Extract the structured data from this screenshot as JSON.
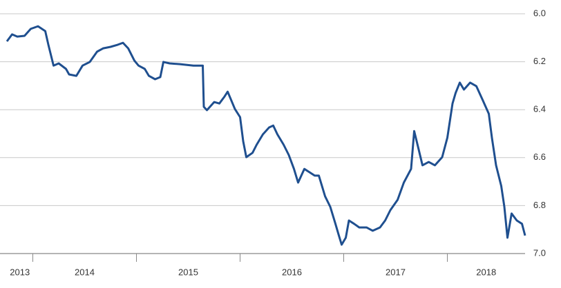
{
  "chart_data": {
    "type": "line",
    "x": [
      2013.75,
      2013.8,
      2013.85,
      2013.92,
      2013.98,
      2014.05,
      2014.12,
      2014.15,
      2014.2,
      2014.25,
      2014.32,
      2014.35,
      2014.42,
      2014.48,
      2014.55,
      2014.62,
      2014.68,
      2014.75,
      2014.82,
      2014.87,
      2014.92,
      2014.98,
      2015.02,
      2015.08,
      2015.12,
      2015.18,
      2015.23,
      2015.26,
      2015.32,
      2015.42,
      2015.55,
      2015.64,
      2015.65,
      2015.68,
      2015.75,
      2015.8,
      2015.85,
      2015.88,
      2015.95,
      2016.0,
      2016.03,
      2016.06,
      2016.12,
      2016.16,
      2016.22,
      2016.28,
      2016.32,
      2016.36,
      2016.42,
      2016.47,
      2016.52,
      2016.56,
      2016.62,
      2016.67,
      2016.72,
      2016.76,
      2016.82,
      2016.87,
      2016.92,
      2016.95,
      2016.98,
      2017.02,
      2017.05,
      2017.1,
      2017.15,
      2017.22,
      2017.28,
      2017.35,
      2017.4,
      2017.45,
      2017.52,
      2017.58,
      2017.65,
      2017.68,
      2017.72,
      2017.76,
      2017.82,
      2017.88,
      2017.95,
      2018.0,
      2018.05,
      2018.08,
      2018.12,
      2018.16,
      2018.22,
      2018.28,
      2018.34,
      2018.4,
      2018.43,
      2018.47,
      2018.52,
      2018.55,
      2018.58,
      2018.62,
      2018.67,
      2018.72,
      2018.75
    ],
    "series": [
      {
        "color": "#1f4f8f",
        "values": [
          6.115,
          6.086,
          6.095,
          6.092,
          6.063,
          6.052,
          6.072,
          6.129,
          6.216,
          6.207,
          6.23,
          6.253,
          6.259,
          6.216,
          6.201,
          6.158,
          6.144,
          6.138,
          6.129,
          6.121,
          6.144,
          6.195,
          6.216,
          6.23,
          6.259,
          6.273,
          6.264,
          6.201,
          6.207,
          6.21,
          6.216,
          6.216,
          6.388,
          6.402,
          6.368,
          6.374,
          6.345,
          6.325,
          6.397,
          6.431,
          6.532,
          6.598,
          6.58,
          6.546,
          6.503,
          6.474,
          6.466,
          6.503,
          6.546,
          6.589,
          6.647,
          6.704,
          6.647,
          6.661,
          6.675,
          6.675,
          6.761,
          6.805,
          6.876,
          6.92,
          6.963,
          6.934,
          6.862,
          6.876,
          6.891,
          6.891,
          6.905,
          6.891,
          6.862,
          6.819,
          6.776,
          6.704,
          6.647,
          6.489,
          6.56,
          6.632,
          6.618,
          6.632,
          6.598,
          6.517,
          6.374,
          6.33,
          6.287,
          6.316,
          6.287,
          6.302,
          6.359,
          6.417,
          6.517,
          6.632,
          6.718,
          6.805,
          6.934,
          6.833,
          6.862,
          6.876,
          6.925
        ]
      }
    ],
    "xlim": [
      2013.75,
      2018.75
    ],
    "xticks": [
      2013,
      2014,
      2015,
      2016,
      2017,
      2018
    ],
    "ylim": [
      6,
      7
    ],
    "y_inverted": true,
    "yticks": [
      {
        "value": 6,
        "label": "6.0"
      },
      {
        "value": 6.2,
        "label": "6.2"
      },
      {
        "value": 6.4,
        "label": "6.4"
      },
      {
        "value": 6.6,
        "label": "6.6"
      },
      {
        "value": 6.8,
        "label": "6.8"
      },
      {
        "value": 7,
        "label": "7.0"
      }
    ],
    "grid": true
  }
}
